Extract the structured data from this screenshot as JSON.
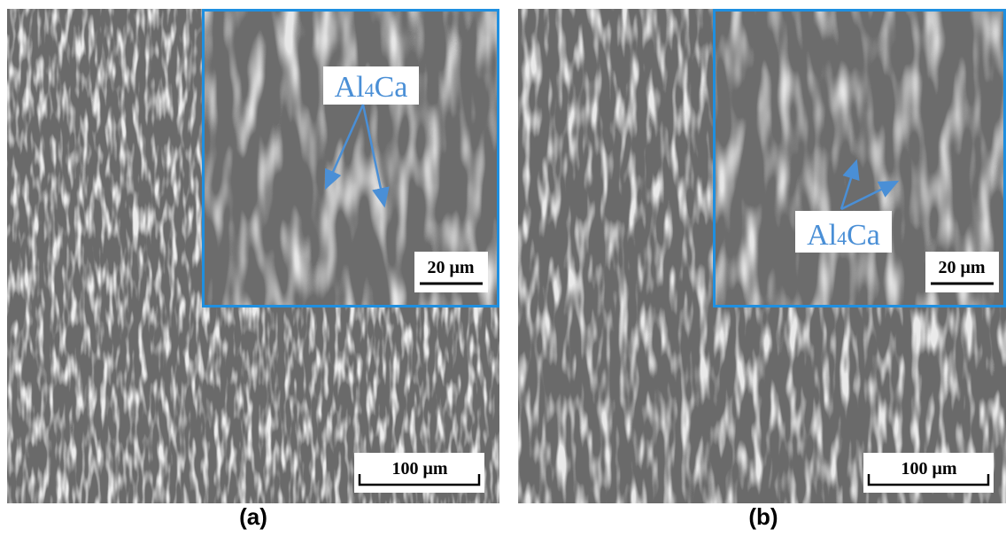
{
  "panels": [
    {
      "caption": "(a)",
      "label": {
        "prefix": "Al",
        "sub": "4",
        "suffix": "Ca"
      },
      "inset_scale": "20 μm",
      "scale": "100 μm"
    },
    {
      "caption": "(b)",
      "label": {
        "prefix": "Al",
        "sub": "4",
        "suffix": "Ca"
      },
      "inset_scale": "20 μm",
      "scale": "100 μm"
    }
  ]
}
